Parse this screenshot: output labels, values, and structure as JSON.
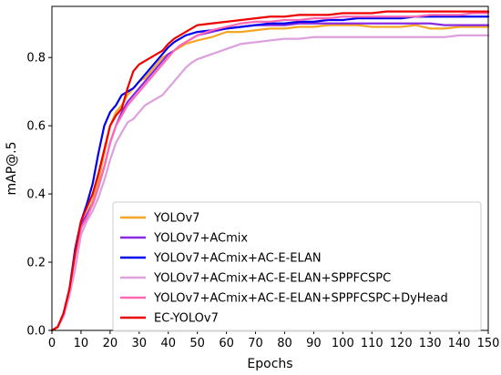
{
  "chart_data": {
    "type": "line",
    "title": "",
    "xlabel": "Epochs",
    "ylabel": "mAP@.5",
    "xlim": [
      0,
      150
    ],
    "ylim": [
      0.0,
      0.95
    ],
    "xticks": [
      0,
      10,
      20,
      30,
      40,
      50,
      60,
      70,
      80,
      90,
      100,
      110,
      120,
      130,
      140,
      150
    ],
    "yticks": [
      0.0,
      0.2,
      0.4,
      0.6,
      0.8
    ],
    "ytick_labels": [
      "0.0",
      "0.2",
      "0.4",
      "0.6",
      "0.8"
    ],
    "grid": false,
    "legend_position": "bottom-right",
    "x": [
      0,
      2,
      4,
      6,
      8,
      10,
      12,
      14,
      16,
      18,
      20,
      22,
      24,
      26,
      28,
      30,
      32,
      34,
      36,
      38,
      40,
      42,
      44,
      46,
      48,
      50,
      55,
      60,
      65,
      70,
      75,
      80,
      85,
      90,
      95,
      100,
      105,
      110,
      115,
      120,
      125,
      130,
      135,
      140,
      145,
      150
    ],
    "series": [
      {
        "name": "YOLOv7",
        "color": "#f5a623",
        "values": [
          0.0,
          0.01,
          0.05,
          0.12,
          0.22,
          0.3,
          0.34,
          0.38,
          0.44,
          0.52,
          0.6,
          0.64,
          0.66,
          0.69,
          0.71,
          0.73,
          0.74,
          0.76,
          0.78,
          0.8,
          0.81,
          0.82,
          0.83,
          0.84,
          0.845,
          0.85,
          0.86,
          0.875,
          0.875,
          0.88,
          0.885,
          0.885,
          0.89,
          0.89,
          0.895,
          0.895,
          0.895,
          0.89,
          0.89,
          0.89,
          0.895,
          0.885,
          0.885,
          0.89,
          0.89,
          0.89
        ]
      },
      {
        "name": "YOLOv7+ACmix",
        "color": "#8a2be2",
        "values": [
          0.0,
          0.01,
          0.05,
          0.12,
          0.22,
          0.31,
          0.34,
          0.37,
          0.42,
          0.48,
          0.55,
          0.6,
          0.64,
          0.67,
          0.69,
          0.71,
          0.73,
          0.75,
          0.77,
          0.79,
          0.81,
          0.82,
          0.835,
          0.845,
          0.855,
          0.865,
          0.875,
          0.885,
          0.89,
          0.895,
          0.895,
          0.895,
          0.9,
          0.9,
          0.9,
          0.9,
          0.9,
          0.9,
          0.9,
          0.9,
          0.9,
          0.9,
          0.895,
          0.895,
          0.895,
          0.895
        ]
      },
      {
        "name": "YOLOv7+ACmix+AC-E-ELAN",
        "color": "#0000ee",
        "values": [
          0.0,
          0.01,
          0.05,
          0.12,
          0.24,
          0.32,
          0.37,
          0.43,
          0.52,
          0.6,
          0.64,
          0.66,
          0.69,
          0.7,
          0.71,
          0.73,
          0.75,
          0.77,
          0.79,
          0.81,
          0.83,
          0.845,
          0.855,
          0.865,
          0.87,
          0.875,
          0.88,
          0.885,
          0.89,
          0.895,
          0.9,
          0.9,
          0.905,
          0.905,
          0.91,
          0.91,
          0.915,
          0.915,
          0.915,
          0.915,
          0.92,
          0.92,
          0.92,
          0.92,
          0.92,
          0.92
        ]
      },
      {
        "name": "YOLOv7+ACmix+AC-E-ELAN+SPPFCSPC",
        "color": "#dda0dd",
        "values": [
          0.0,
          0.01,
          0.04,
          0.1,
          0.18,
          0.28,
          0.32,
          0.35,
          0.39,
          0.44,
          0.5,
          0.55,
          0.58,
          0.61,
          0.62,
          0.64,
          0.66,
          0.67,
          0.68,
          0.69,
          0.71,
          0.73,
          0.75,
          0.77,
          0.785,
          0.795,
          0.81,
          0.825,
          0.84,
          0.845,
          0.85,
          0.855,
          0.855,
          0.86,
          0.86,
          0.86,
          0.86,
          0.86,
          0.86,
          0.86,
          0.86,
          0.86,
          0.86,
          0.865,
          0.865,
          0.865
        ]
      },
      {
        "name": "YOLOv7+ACmix+AC-E-ELAN+SPPFCSPC+DyHead",
        "color": "#ff69b4",
        "values": [
          0.0,
          0.01,
          0.05,
          0.12,
          0.22,
          0.3,
          0.33,
          0.37,
          0.42,
          0.48,
          0.55,
          0.6,
          0.63,
          0.66,
          0.68,
          0.7,
          0.72,
          0.74,
          0.76,
          0.78,
          0.8,
          0.82,
          0.835,
          0.845,
          0.855,
          0.865,
          0.88,
          0.89,
          0.9,
          0.905,
          0.905,
          0.91,
          0.91,
          0.915,
          0.915,
          0.92,
          0.92,
          0.92,
          0.92,
          0.92,
          0.92,
          0.925,
          0.925,
          0.925,
          0.93,
          0.93
        ]
      },
      {
        "name": "EC-YOLOv7",
        "color": "#ee0000",
        "values": [
          0.0,
          0.01,
          0.05,
          0.12,
          0.23,
          0.32,
          0.36,
          0.4,
          0.46,
          0.53,
          0.6,
          0.63,
          0.65,
          0.71,
          0.76,
          0.78,
          0.79,
          0.8,
          0.81,
          0.82,
          0.84,
          0.855,
          0.865,
          0.875,
          0.885,
          0.895,
          0.9,
          0.905,
          0.91,
          0.915,
          0.92,
          0.92,
          0.925,
          0.925,
          0.925,
          0.93,
          0.93,
          0.93,
          0.935,
          0.935,
          0.935,
          0.935,
          0.935,
          0.935,
          0.935,
          0.935
        ]
      }
    ]
  }
}
